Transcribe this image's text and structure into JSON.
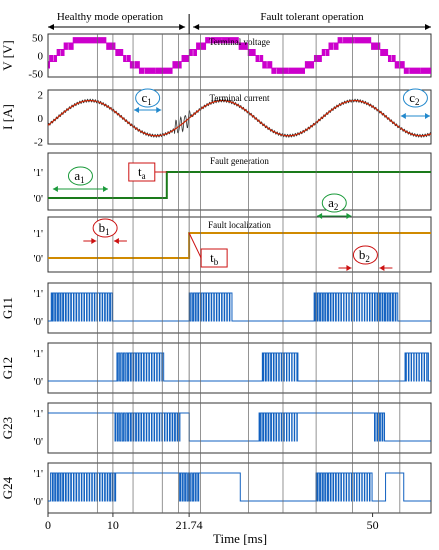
{
  "header": {
    "left_label": "Healthy mode operation",
    "right_label": "Fault tolerant operation"
  },
  "colors": {
    "voltage": "#cc00cc",
    "current_fund": "#cc2200",
    "current_ripple": "#333333",
    "fault_gen": "#1a7a1a",
    "fault_loc": "#d08a00",
    "gate": "#1060c0",
    "arrow_green": "#1a9a3a",
    "arrow_red": "#cc1111",
    "arrow_blue": "#2288cc",
    "frame": "#333333",
    "vline": "#666666"
  },
  "chart_data": {
    "type": "line",
    "x_axis": {
      "label": "Time [ms]",
      "range": [
        0,
        59
      ],
      "ticks": [
        0,
        10,
        21.74,
        50
      ],
      "tick_labels": [
        "0",
        "10",
        "21.74",
        "50"
      ]
    },
    "fault_time_ms": 21.74,
    "period_ms": 20.4,
    "vertical_lines_ms": [
      7.6,
      10.0,
      13.1,
      17.6,
      20.1,
      23.5,
      30.9,
      36.2,
      41.3,
      46.9,
      50.9,
      54.2
    ],
    "panels": [
      {
        "id": "voltage",
        "type": "line",
        "title": "Terminal voltage",
        "ylabel": "V [V]",
        "ylim": [
          -60,
          60
        ],
        "yticks": [
          50,
          0,
          -50
        ],
        "ytick_labels": [
          "50",
          "0",
          "-50"
        ],
        "levels_V": [
          -50,
          -35,
          -17,
          0,
          17,
          35,
          50
        ]
      },
      {
        "id": "current",
        "type": "line",
        "title": "Terminal current",
        "ylabel": "I [A]",
        "ylim": [
          -2.2,
          2.4
        ],
        "yticks": [
          2,
          0,
          -2
        ],
        "ytick_labels": [
          "2",
          "0",
          "-2"
        ],
        "amplitude_A": 1.5,
        "ripple_A": 0.12,
        "disturbance_ms": [
          19.5,
          22.0
        ]
      },
      {
        "id": "fault_gen",
        "type": "line",
        "title": "Fault generation",
        "ytick_labels": [
          "'1'",
          "'0'"
        ],
        "step_ms": 18.3
      },
      {
        "id": "fault_loc",
        "type": "line",
        "title": "Fault localization",
        "ytick_labels": [
          "'1'",
          "'0'"
        ],
        "step_ms": 21.74
      },
      {
        "id": "G11",
        "type": "line",
        "ylabel": "G11",
        "ytick_labels": [
          "'1'",
          "'0'"
        ],
        "switching_ms": [
          [
            0.5,
            10.0
          ],
          [
            21.74,
            28.4
          ],
          [
            41.0,
            54.0
          ]
        ]
      },
      {
        "id": "G12",
        "type": "line",
        "ylabel": "G12",
        "ytick_labels": [
          "'1'",
          "'0'"
        ],
        "switching_ms": [
          [
            10.6,
            17.8
          ],
          [
            33.0,
            38.5
          ],
          [
            55.0,
            58.6
          ]
        ]
      },
      {
        "id": "G23",
        "type": "line",
        "ylabel": "G23",
        "ytick_labels": [
          "'1'",
          "'0'"
        ],
        "high_ms": [
          [
            0.0,
            10.3
          ],
          [
            20.3,
            21.74
          ],
          [
            38.7,
            50.0
          ]
        ],
        "switching_ms": [
          [
            10.3,
            20.3
          ],
          [
            32.5,
            38.7
          ],
          [
            50.0,
            52.0
          ]
        ]
      },
      {
        "id": "G24",
        "type": "line",
        "ylabel": "G24",
        "ytick_labels": [
          "'1'",
          "'0'"
        ],
        "high_ms": [
          [
            10.4,
            20.0
          ],
          [
            23.2,
            29.6
          ],
          [
            52.0,
            54.8
          ]
        ],
        "switching_ms": [
          [
            0.4,
            10.4
          ],
          [
            20.0,
            23.2
          ],
          [
            41.3,
            50.0
          ]
        ]
      }
    ],
    "annotations": [
      {
        "id": "a1",
        "label": "a",
        "sub": "1",
        "color": "green",
        "panel": "fault_gen",
        "x_ms": [
          0.6,
          9.4
        ],
        "style": "inner"
      },
      {
        "id": "ta",
        "label": "t",
        "sub": "a",
        "color": "red",
        "panel": "fault_gen",
        "x_ms": 18.3,
        "style": "box"
      },
      {
        "id": "b1",
        "label": "b",
        "sub": "1",
        "color": "red",
        "panel": "fault_loc",
        "x_ms": [
          7.6,
          10.0
        ],
        "style": "outer"
      },
      {
        "id": "tb",
        "label": "t",
        "sub": "b",
        "color": "red",
        "panel": "fault_loc",
        "x_ms": 21.74,
        "style": "box"
      },
      {
        "id": "a2",
        "label": "a",
        "sub": "2",
        "color": "green",
        "panel": "fault_loc",
        "x_ms": [
          41.3,
          46.9
        ],
        "style": "inner"
      },
      {
        "id": "b2",
        "label": "b",
        "sub": "2",
        "color": "red",
        "panel": "fault_loc",
        "x_ms": [
          46.9,
          50.9
        ],
        "style": "outer"
      },
      {
        "id": "c1",
        "label": "c",
        "sub": "1",
        "color": "blue",
        "panel": "current",
        "x_ms": [
          13.1,
          17.6
        ],
        "style": "inner"
      },
      {
        "id": "c2",
        "label": "c",
        "sub": "2",
        "color": "blue",
        "panel": "current",
        "x_ms": [
          54.2,
          59.0
        ],
        "style": "inner"
      }
    ]
  }
}
